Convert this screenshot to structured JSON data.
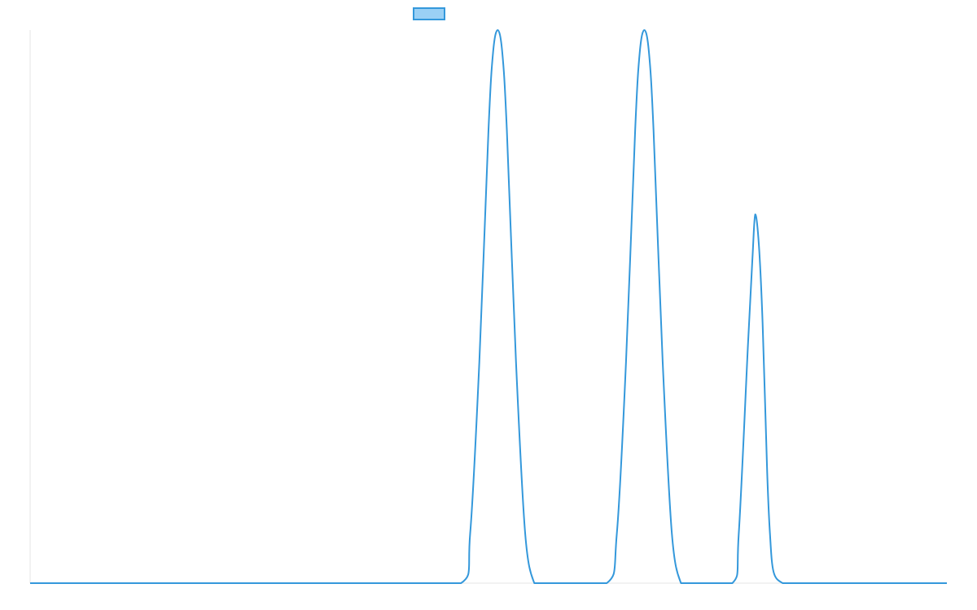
{
  "chart_data": {
    "type": "line",
    "title": "",
    "xlabel": "",
    "ylabel": "",
    "xlim": [
      0,
      100
    ],
    "ylim": [
      0,
      100
    ],
    "grid": false,
    "legend": {
      "placement": "top-center"
    },
    "colors": {
      "line": "#3498db",
      "legend_fill": "#9ad0f5",
      "axis": "#e6e6e6"
    },
    "series": [
      {
        "x": [
          0,
          20,
          40,
          47,
          48,
          49,
          50,
          50.5,
          51,
          51.5,
          52,
          53,
          54,
          55,
          56,
          57,
          62.9,
          64,
          65,
          66,
          66.5,
          67,
          67.5,
          68,
          69,
          70,
          71,
          72,
          76.6,
          77.3,
          78.3,
          78.8,
          79.1,
          79.5,
          79.9,
          80.4,
          80.7,
          81.1,
          82.1,
          83,
          90,
          100
        ],
        "y": [
          0,
          0,
          0,
          0,
          9,
          40,
          82,
          96,
          100,
          96,
          82,
          40,
          9,
          0,
          0,
          0,
          0,
          9,
          40,
          82,
          96,
          100,
          96,
          82,
          40,
          9,
          0,
          0,
          0,
          9,
          43,
          59,
          66.7,
          61,
          47,
          20,
          9,
          2,
          0,
          0,
          0,
          0
        ]
      }
    ]
  }
}
